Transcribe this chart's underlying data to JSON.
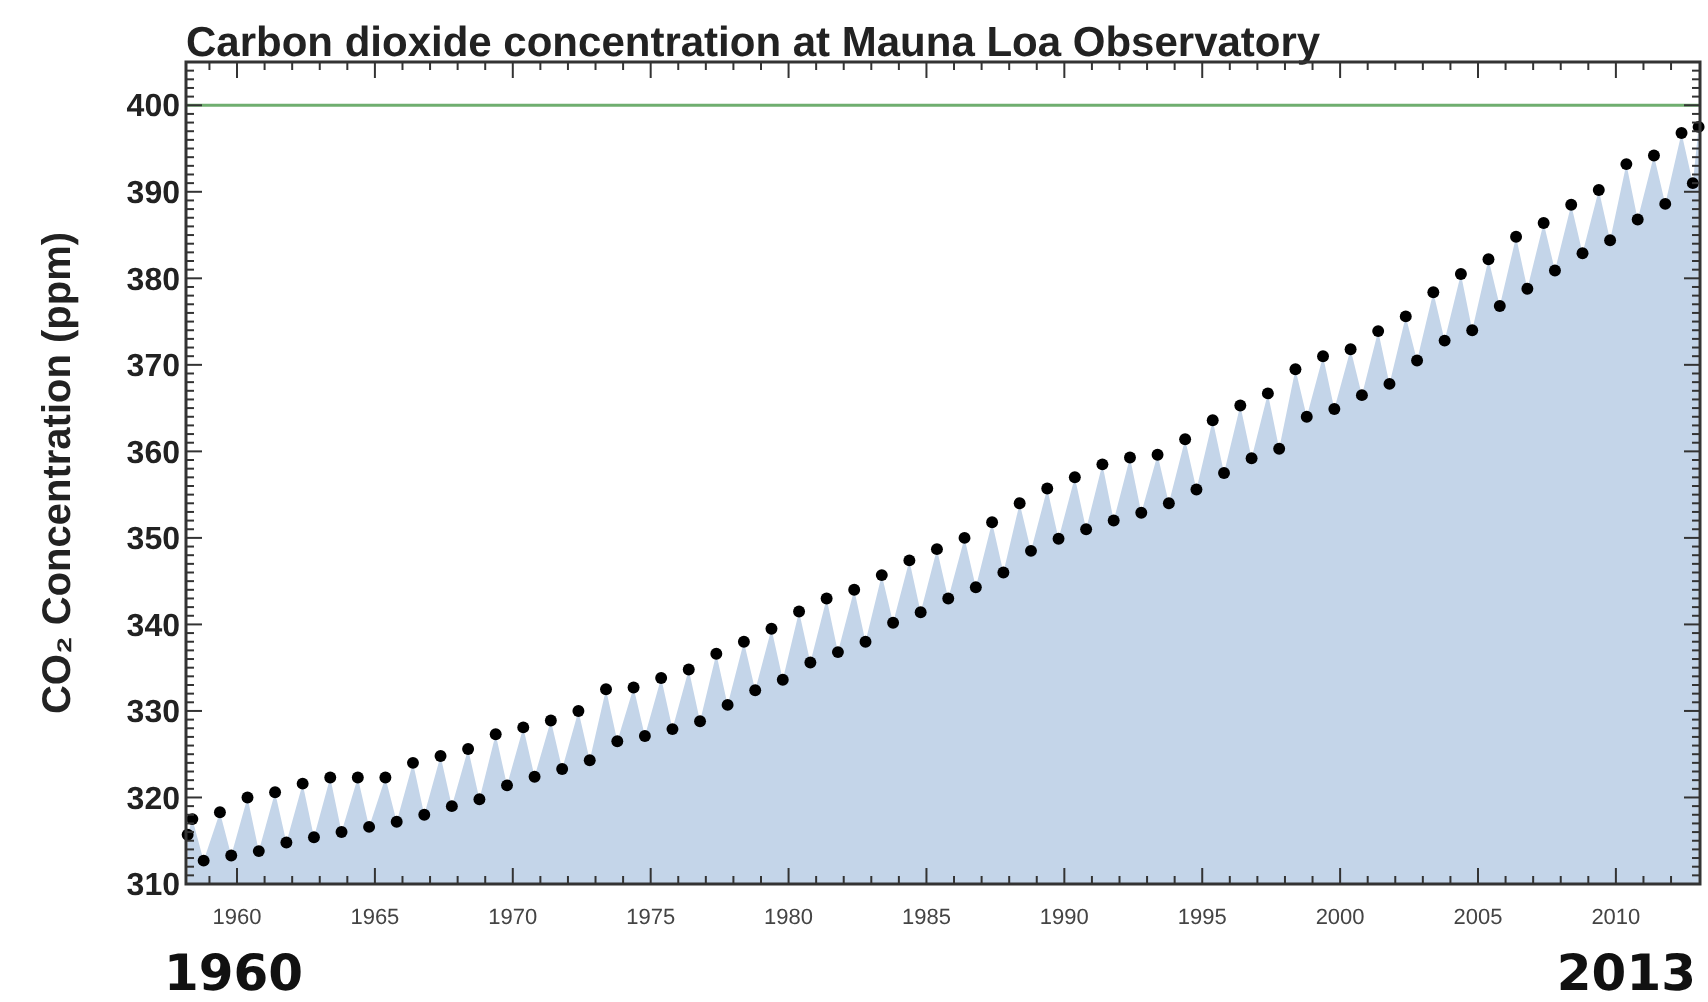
{
  "chart_data": {
    "type": "scatter",
    "title": "Carbon dioxide concentration at Mauna Loa Observatory",
    "ylabel": "CO₂ Concentration (ppm)",
    "x": [
      1958.21,
      1958.38,
      1958.79,
      1959.38,
      1959.79,
      1960.38,
      1960.79,
      1961.38,
      1961.79,
      1962.38,
      1962.79,
      1963.38,
      1963.79,
      1964.38,
      1964.79,
      1965.38,
      1965.79,
      1966.38,
      1966.79,
      1967.38,
      1967.79,
      1968.38,
      1968.79,
      1969.38,
      1969.79,
      1970.38,
      1970.79,
      1971.38,
      1971.79,
      1972.38,
      1972.79,
      1973.38,
      1973.79,
      1974.38,
      1974.79,
      1975.38,
      1975.79,
      1976.38,
      1976.79,
      1977.38,
      1977.79,
      1978.38,
      1978.79,
      1979.38,
      1979.79,
      1980.38,
      1980.79,
      1981.38,
      1981.79,
      1982.38,
      1982.79,
      1983.38,
      1983.79,
      1984.38,
      1984.79,
      1985.38,
      1985.79,
      1986.38,
      1986.79,
      1987.38,
      1987.79,
      1988.38,
      1988.79,
      1989.38,
      1989.79,
      1990.38,
      1990.79,
      1991.38,
      1991.79,
      1992.38,
      1992.79,
      1993.38,
      1993.79,
      1994.38,
      1994.79,
      1995.38,
      1995.79,
      1996.38,
      1996.79,
      1997.38,
      1997.79,
      1998.38,
      1998.79,
      1999.38,
      1999.79,
      2000.38,
      2000.79,
      2001.38,
      2001.79,
      2002.38,
      2002.79,
      2003.38,
      2003.79,
      2004.38,
      2004.79,
      2005.38,
      2005.79,
      2006.38,
      2006.79,
      2007.38,
      2007.79,
      2008.38,
      2008.79,
      2009.38,
      2009.79,
      2010.38,
      2010.79,
      2011.38,
      2011.79,
      2012.38,
      2012.79,
      2013.0
    ],
    "series": [
      {
        "type": "area",
        "color": "#c4d5e9",
        "values": [
          315.7,
          317.5,
          312.7,
          318.3,
          313.3,
          320.0,
          313.8,
          320.6,
          314.8,
          321.6,
          315.4,
          322.3,
          316.0,
          322.3,
          316.6,
          322.3,
          317.2,
          324.0,
          318.0,
          324.8,
          319.0,
          325.6,
          319.8,
          327.3,
          321.4,
          328.1,
          322.4,
          328.9,
          323.3,
          330.0,
          324.3,
          332.5,
          326.5,
          332.7,
          327.1,
          333.8,
          327.9,
          334.8,
          328.8,
          336.6,
          330.7,
          338.0,
          332.4,
          339.5,
          333.6,
          341.5,
          335.6,
          343.0,
          336.8,
          344.0,
          338.0,
          345.7,
          340.2,
          347.4,
          341.4,
          348.7,
          343.0,
          350.0,
          344.3,
          351.8,
          346.0,
          354.0,
          348.5,
          355.7,
          349.9,
          357.0,
          351.0,
          358.5,
          352.0,
          359.3,
          352.9,
          359.6,
          354.0,
          361.4,
          355.6,
          363.6,
          357.5,
          365.3,
          359.2,
          366.7,
          360.3,
          369.5,
          364.0,
          371.0,
          364.9,
          371.8,
          366.5,
          373.9,
          367.8,
          375.6,
          370.5,
          378.4,
          372.8,
          380.5,
          374.0,
          382.2,
          376.8,
          384.8,
          378.8,
          386.4,
          380.9,
          388.5,
          382.9,
          390.2,
          384.4,
          393.2,
          386.8,
          394.2,
          388.6,
          396.8,
          391.0,
          397.5
        ]
      },
      {
        "color": "#000000",
        "marker": "circle",
        "values": [
          315.7,
          317.5,
          312.7,
          318.3,
          313.3,
          320.0,
          313.8,
          320.6,
          314.8,
          321.6,
          315.4,
          322.3,
          316.0,
          322.3,
          316.6,
          322.3,
          317.2,
          324.0,
          318.0,
          324.8,
          319.0,
          325.6,
          319.8,
          327.3,
          321.4,
          328.1,
          322.4,
          328.9,
          323.3,
          330.0,
          324.3,
          332.5,
          326.5,
          332.7,
          327.1,
          333.8,
          327.9,
          334.8,
          328.8,
          336.6,
          330.7,
          338.0,
          332.4,
          339.5,
          333.6,
          341.5,
          335.6,
          343.0,
          336.8,
          344.0,
          338.0,
          345.7,
          340.2,
          347.4,
          341.4,
          348.7,
          343.0,
          350.0,
          344.3,
          351.8,
          346.0,
          354.0,
          348.5,
          355.7,
          349.9,
          357.0,
          351.0,
          358.5,
          352.0,
          359.3,
          352.9,
          359.6,
          354.0,
          361.4,
          355.6,
          363.6,
          357.5,
          365.3,
          359.2,
          366.7,
          360.3,
          369.5,
          364.0,
          371.0,
          364.9,
          371.8,
          366.5,
          373.9,
          367.8,
          375.6,
          370.5,
          378.4,
          372.8,
          380.5,
          374.0,
          382.2,
          376.8,
          384.8,
          378.8,
          386.4,
          380.9,
          388.5,
          382.9,
          390.2,
          384.4,
          393.2,
          386.8,
          394.2,
          388.6,
          396.8,
          391.0,
          397.5
        ]
      }
    ],
    "xlim": [
      1958.15,
      2013.05
    ],
    "ylim": [
      310,
      405
    ],
    "xticks": [
      {
        "value": 1959,
        "label": null
      },
      1960,
      {
        "value": 1961,
        "label": null
      },
      {
        "value": 1962,
        "label": null
      },
      {
        "value": 1963,
        "label": null
      },
      {
        "value": 1964,
        "label": null
      },
      1965,
      {
        "value": 1966,
        "label": null
      },
      {
        "value": 1967,
        "label": null
      },
      {
        "value": 1968,
        "label": null
      },
      {
        "value": 1969,
        "label": null
      },
      1970,
      {
        "value": 1971,
        "label": null
      },
      {
        "value": 1972,
        "label": null
      },
      {
        "value": 1973,
        "label": null
      },
      {
        "value": 1974,
        "label": null
      },
      1975,
      {
        "value": 1976,
        "label": null
      },
      {
        "value": 1977,
        "label": null
      },
      {
        "value": 1978,
        "label": null
      },
      {
        "value": 1979,
        "label": null
      },
      1980,
      {
        "value": 1981,
        "label": null
      },
      {
        "value": 1982,
        "label": null
      },
      {
        "value": 1983,
        "label": null
      },
      {
        "value": 1984,
        "label": null
      },
      1985,
      {
        "value": 1986,
        "label": null
      },
      {
        "value": 1987,
        "label": null
      },
      {
        "value": 1988,
        "label": null
      },
      {
        "value": 1989,
        "label": null
      },
      1990,
      {
        "value": 1991,
        "label": null
      },
      {
        "value": 1992,
        "label": null
      },
      {
        "value": 1993,
        "label": null
      },
      {
        "value": 1994,
        "label": null
      },
      1995,
      {
        "value": 1996,
        "label": null
      },
      {
        "value": 1997,
        "label": null
      },
      {
        "value": 1998,
        "label": null
      },
      {
        "value": 1999,
        "label": null
      },
      2000,
      {
        "value": 2001,
        "label": null
      },
      {
        "value": 2002,
        "label": null
      },
      {
        "value": 2003,
        "label": null
      },
      {
        "value": 2004,
        "label": null
      },
      2005,
      {
        "value": 2006,
        "label": null
      },
      {
        "value": 2007,
        "label": null
      },
      {
        "value": 2008,
        "label": null
      },
      {
        "value": 2009,
        "label": null
      },
      2010,
      {
        "value": 2011,
        "label": null
      },
      {
        "value": 2012,
        "label": null
      }
    ],
    "yticks": [
      310,
      {
        "value": 311,
        "label": null
      },
      {
        "value": 312,
        "label": null
      },
      {
        "value": 313,
        "label": null
      },
      {
        "value": 314,
        "label": null
      },
      {
        "value": 315,
        "label": null
      },
      {
        "value": 316,
        "label": null
      },
      {
        "value": 317,
        "label": null
      },
      {
        "value": 318,
        "label": null
      },
      {
        "value": 319,
        "label": null
      },
      320,
      {
        "value": 321,
        "label": null
      },
      {
        "value": 322,
        "label": null
      },
      {
        "value": 323,
        "label": null
      },
      {
        "value": 324,
        "label": null
      },
      {
        "value": 325,
        "label": null
      },
      {
        "value": 326,
        "label": null
      },
      {
        "value": 327,
        "label": null
      },
      {
        "value": 328,
        "label": null
      },
      {
        "value": 329,
        "label": null
      },
      330,
      {
        "value": 331,
        "label": null
      },
      {
        "value": 332,
        "label": null
      },
      {
        "value": 333,
        "label": null
      },
      {
        "value": 334,
        "label": null
      },
      {
        "value": 335,
        "label": null
      },
      {
        "value": 336,
        "label": null
      },
      {
        "value": 337,
        "label": null
      },
      {
        "value": 338,
        "label": null
      },
      {
        "value": 339,
        "label": null
      },
      340,
      {
        "value": 341,
        "label": null
      },
      {
        "value": 342,
        "label": null
      },
      {
        "value": 343,
        "label": null
      },
      {
        "value": 344,
        "label": null
      },
      {
        "value": 345,
        "label": null
      },
      {
        "value": 346,
        "label": null
      },
      {
        "value": 347,
        "label": null
      },
      {
        "value": 348,
        "label": null
      },
      {
        "value": 349,
        "label": null
      },
      350,
      {
        "value": 351,
        "label": null
      },
      {
        "value": 352,
        "label": null
      },
      {
        "value": 353,
        "label": null
      },
      {
        "value": 354,
        "label": null
      },
      {
        "value": 355,
        "label": null
      },
      {
        "value": 356,
        "label": null
      },
      {
        "value": 357,
        "label": null
      },
      {
        "value": 358,
        "label": null
      },
      {
        "value": 359,
        "label": null
      },
      360,
      {
        "value": 361,
        "label": null
      },
      {
        "value": 362,
        "label": null
      },
      {
        "value": 363,
        "label": null
      },
      {
        "value": 364,
        "label": null
      },
      {
        "value": 365,
        "label": null
      },
      {
        "value": 366,
        "label": null
      },
      {
        "value": 367,
        "label": null
      },
      {
        "value": 368,
        "label": null
      },
      {
        "value": 369,
        "label": null
      },
      370,
      {
        "value": 371,
        "label": null
      },
      {
        "value": 372,
        "label": null
      },
      {
        "value": 373,
        "label": null
      },
      {
        "value": 374,
        "label": null
      },
      {
        "value": 375,
        "label": null
      },
      {
        "value": 376,
        "label": null
      },
      {
        "value": 377,
        "label": null
      },
      {
        "value": 378,
        "label": null
      },
      {
        "value": 379,
        "label": null
      },
      380,
      {
        "value": 381,
        "label": null
      },
      {
        "value": 382,
        "label": null
      },
      {
        "value": 383,
        "label": null
      },
      {
        "value": 384,
        "label": null
      },
      {
        "value": 385,
        "label": null
      },
      {
        "value": 386,
        "label": null
      },
      {
        "value": 387,
        "label": null
      },
      {
        "value": 388,
        "label": null
      },
      {
        "value": 389,
        "label": null
      },
      390,
      {
        "value": 391,
        "label": null
      },
      {
        "value": 392,
        "label": null
      },
      {
        "value": 393,
        "label": null
      },
      {
        "value": 394,
        "label": null
      },
      {
        "value": 395,
        "label": null
      },
      {
        "value": 396,
        "label": null
      },
      {
        "value": 397,
        "label": null
      },
      {
        "value": 398,
        "label": null
      },
      {
        "value": 399,
        "label": null
      },
      400,
      {
        "value": 401,
        "label": null
      },
      {
        "value": 402,
        "label": null
      },
      {
        "value": 403,
        "label": null
      },
      {
        "value": 404,
        "label": null
      }
    ],
    "ref_lines": [
      {
        "axis": "y",
        "value": 400,
        "color": "#6fae6f"
      }
    ],
    "annotations": [
      "1960",
      "2013"
    ]
  }
}
